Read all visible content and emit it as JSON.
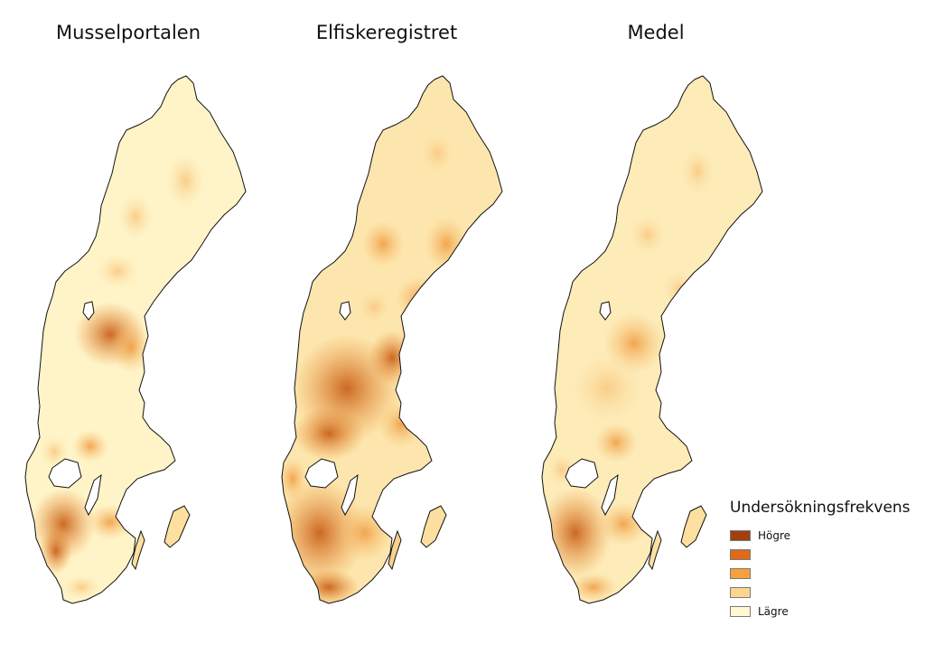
{
  "panels": [
    {
      "title": "Musselportalen",
      "intensity": "low"
    },
    {
      "title": "Elfiskeregistret",
      "intensity": "high"
    },
    {
      "title": "Medel",
      "intensity": "medium"
    }
  ],
  "legend": {
    "title": "Undersökningsfrekvens",
    "classes": [
      {
        "label": "Högre",
        "color": "#a0400f"
      },
      {
        "label": "",
        "color": "#e06a1a"
      },
      {
        "label": "",
        "color": "#f7a03d"
      },
      {
        "label": "",
        "color": "#fcd68f"
      },
      {
        "label": "Lägre",
        "color": "#fff8d2"
      }
    ]
  }
}
